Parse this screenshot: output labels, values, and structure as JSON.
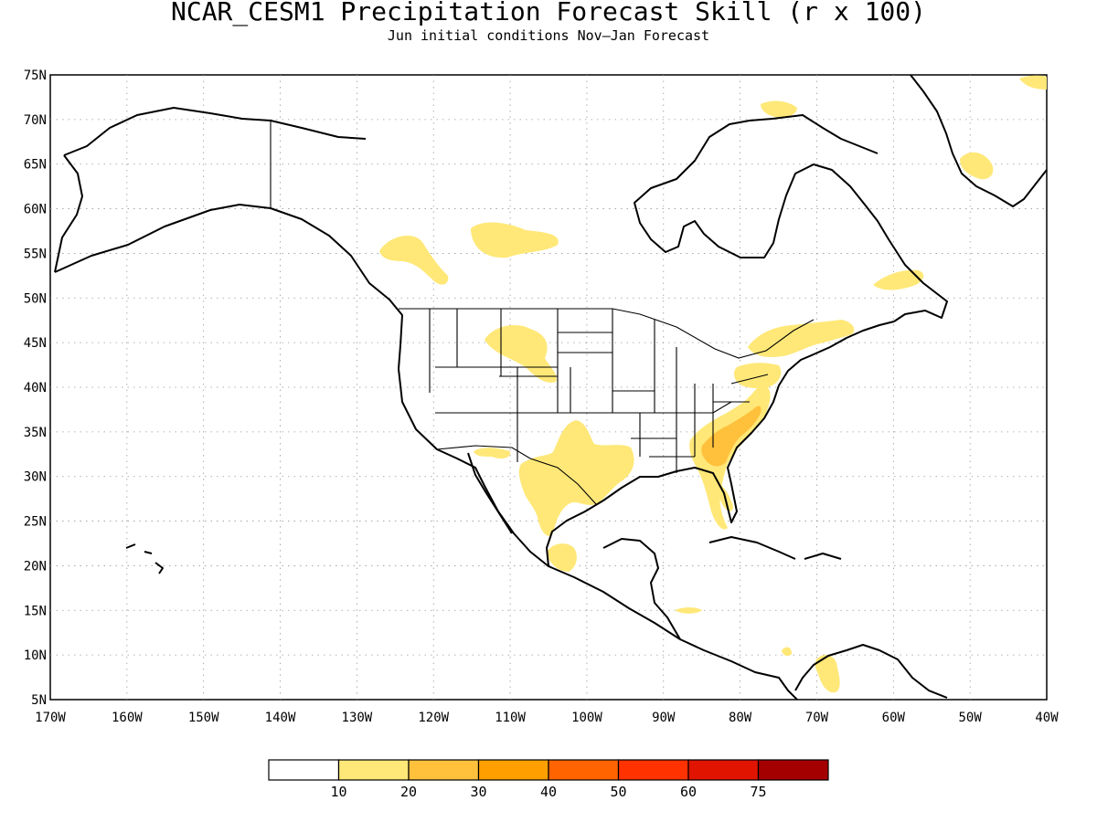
{
  "map": {
    "title": "NCAR_CESM1 Precipitation Forecast Skill (r x 100)",
    "subtitle": "Jun initial conditions  Nov—Jan Forecast",
    "lon_range": [
      -170,
      -40
    ],
    "lat_range": [
      5,
      75
    ],
    "lon_ticks": [
      "170W",
      "160W",
      "150W",
      "140W",
      "130W",
      "120W",
      "110W",
      "100W",
      "90W",
      "80W",
      "70W",
      "60W",
      "50W",
      "40W"
    ],
    "lat_ticks": [
      "75N",
      "70N",
      "65N",
      "60N",
      "55N",
      "50N",
      "45N",
      "40N",
      "35N",
      "30N",
      "25N",
      "20N",
      "15N",
      "10N",
      "5N"
    ],
    "grid": true,
    "skill_regions": [
      {
        "name": "Texas / northern Mexico",
        "level": 10
      },
      {
        "name": "Southeast US (Georgia / Carolinas)",
        "level": 20
      },
      {
        "name": "Mid-Atlantic / Pennsylvania",
        "level": 10
      },
      {
        "name": "Northeast US / Maine",
        "level": 10
      },
      {
        "name": "Montana / Wyoming",
        "level": 10
      },
      {
        "name": "British Columbia interior",
        "level": 10
      },
      {
        "name": "Northern Saskatchewan / Manitoba",
        "level": 10
      },
      {
        "name": "Southwest Greenland",
        "level": 10
      },
      {
        "name": "Labrador",
        "level": 10
      },
      {
        "name": "Central Mexico",
        "level": 10
      },
      {
        "name": "Florida peninsula",
        "level": 10
      },
      {
        "name": "Colombia / Venezuela",
        "level": 10
      }
    ]
  },
  "colorbar": {
    "colors": [
      "#ffffff",
      "#ffe878",
      "#ffc03c",
      "#ffa000",
      "#ff6400",
      "#ff3200",
      "#e11400",
      "#a50000"
    ],
    "labels": [
      "10",
      "20",
      "30",
      "40",
      "50",
      "60",
      "75"
    ]
  }
}
